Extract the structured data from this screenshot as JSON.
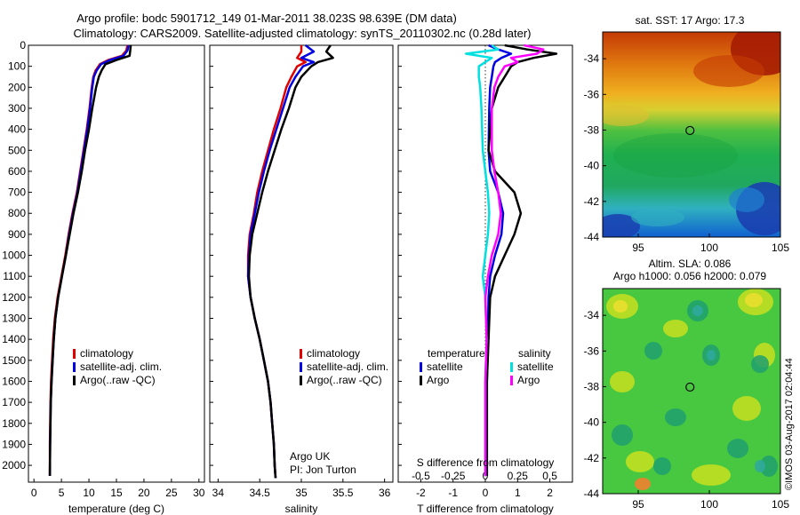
{
  "header": {
    "line1": "Argo profile: bodc 5901712_149 01-Mar-2011 38.023S 98.639E (DM data)",
    "line2": "Climatology: CARS2009. Satellite-adjusted climatology: synTS_20110302.nc (0.28d later)"
  },
  "credits": {
    "org": "Argo UK",
    "pi": "PI: Jon Turton",
    "stamp": "©IMOS 03-Aug-2017 02:04:44"
  },
  "colors": {
    "climatology": "#e00000",
    "satellite": "#0000e0",
    "argo": "#000000",
    "sal_satellite": "#00e0e0",
    "sal_argo": "#ff00ff"
  },
  "chart_data": [
    {
      "type": "line",
      "name": "temperature",
      "xlabel": "temperature (deg C)",
      "ylabel": "",
      "xlim": [
        -1,
        31
      ],
      "ylim": [
        2080,
        0
      ],
      "y_reversed": true,
      "xticks": [
        0,
        5,
        10,
        15,
        20,
        25,
        30
      ],
      "yticks": [
        0,
        100,
        200,
        300,
        400,
        500,
        600,
        700,
        800,
        900,
        1000,
        1100,
        1200,
        1300,
        1400,
        1500,
        1600,
        1700,
        1800,
        1900,
        2000
      ],
      "legend": [
        "climatology",
        "satellite-adj. clim.",
        "Argo(..raw -QC)"
      ],
      "legend_position": "bottom-center",
      "series": [
        {
          "name": "climatology",
          "color": "#e00000",
          "x": [
            17.0,
            16.8,
            16.0,
            13.5,
            12.0,
            11.2,
            10.8,
            10.5,
            10.1,
            9.6,
            9.0,
            8.4,
            7.8,
            7.0,
            6.3,
            5.7,
            5.0,
            4.3,
            3.8,
            3.5,
            3.3,
            3.1,
            3.0,
            2.9,
            2.9
          ],
          "y": [
            0,
            25,
            50,
            70,
            90,
            120,
            150,
            200,
            300,
            400,
            500,
            600,
            700,
            800,
            900,
            1000,
            1100,
            1200,
            1300,
            1400,
            1500,
            1600,
            1700,
            1900,
            2050
          ]
        },
        {
          "name": "satellite-adj. clim.",
          "color": "#0000e0",
          "x": [
            17.2,
            17.0,
            16.3,
            13.8,
            12.2,
            11.4,
            10.9,
            10.6,
            10.2,
            9.7,
            9.1,
            8.5,
            7.9,
            7.1,
            6.4,
            5.8,
            5.1,
            4.4,
            3.9,
            3.6,
            3.4,
            3.2,
            3.05,
            2.95,
            2.9
          ],
          "y": [
            0,
            25,
            50,
            70,
            90,
            120,
            150,
            200,
            300,
            400,
            500,
            600,
            700,
            800,
            900,
            1000,
            1100,
            1200,
            1300,
            1400,
            1500,
            1600,
            1700,
            1900,
            2050
          ]
        },
        {
          "name": "Argo(..raw -QC)",
          "color": "#000000",
          "x": [
            17.6,
            17.5,
            17.4,
            15.0,
            13.0,
            12.3,
            11.8,
            11.3,
            10.6,
            10.0,
            9.3,
            8.7,
            8.0,
            7.2,
            6.5,
            5.8,
            5.1,
            4.4,
            3.9,
            3.6,
            3.4,
            3.2,
            3.05,
            2.95,
            2.9
          ],
          "y": [
            0,
            25,
            50,
            70,
            90,
            120,
            150,
            200,
            300,
            400,
            500,
            600,
            700,
            800,
            900,
            1000,
            1100,
            1200,
            1300,
            1400,
            1500,
            1600,
            1700,
            1900,
            2050
          ]
        }
      ]
    },
    {
      "type": "line",
      "name": "salinity",
      "xlabel": "salinity",
      "ylabel": "",
      "xlim": [
        33.9,
        36.1
      ],
      "ylim": [
        2080,
        0
      ],
      "y_reversed": true,
      "xticks": [
        34,
        34.5,
        35,
        35.5,
        36
      ],
      "xticklabels": [
        "34",
        "34.5",
        "35",
        "35.5",
        "36"
      ],
      "legend": [
        "climatology",
        "satellite-adj. clim.",
        "Argo(..raw -QC)"
      ],
      "legend_position": "bottom-right",
      "series": [
        {
          "name": "climatology",
          "color": "#e00000",
          "x": [
            35.0,
            35.0,
            34.95,
            35.05,
            34.95,
            34.88,
            34.82,
            34.75,
            34.67,
            34.6,
            34.53,
            34.47,
            34.43,
            34.38,
            34.36,
            34.36,
            34.39,
            34.44,
            34.5,
            34.55,
            34.6,
            34.63,
            34.65,
            34.67,
            34.68,
            34.69
          ],
          "y": [
            0,
            30,
            60,
            80,
            100,
            150,
            200,
            300,
            400,
            500,
            600,
            700,
            800,
            900,
            1000,
            1100,
            1200,
            1300,
            1400,
            1500,
            1600,
            1700,
            1800,
            1900,
            2000,
            2060
          ]
        },
        {
          "name": "satellite-adj. clim.",
          "color": "#0000e0",
          "x": [
            35.05,
            35.15,
            35.0,
            35.15,
            35.02,
            34.93,
            34.86,
            34.78,
            34.7,
            34.62,
            34.55,
            34.49,
            34.44,
            34.39,
            34.37,
            34.36,
            34.39,
            34.44,
            34.5,
            34.55,
            34.6,
            34.63,
            34.65,
            34.67,
            34.68,
            34.69
          ],
          "y": [
            0,
            30,
            60,
            80,
            100,
            150,
            200,
            300,
            400,
            500,
            600,
            700,
            800,
            900,
            1000,
            1100,
            1200,
            1300,
            1400,
            1500,
            1600,
            1700,
            1800,
            1900,
            2000,
            2060
          ]
        },
        {
          "name": "Argo(..raw -QC)",
          "color": "#000000",
          "x": [
            35.35,
            35.3,
            35.38,
            35.2,
            35.12,
            35.0,
            34.93,
            34.85,
            34.76,
            34.68,
            34.6,
            34.53,
            34.47,
            34.41,
            34.38,
            34.37,
            34.39,
            34.44,
            34.5,
            34.55,
            34.6,
            34.63,
            34.65,
            34.67,
            34.68,
            34.69
          ],
          "y": [
            0,
            30,
            60,
            80,
            100,
            150,
            200,
            300,
            400,
            500,
            600,
            700,
            800,
            900,
            1000,
            1100,
            1200,
            1300,
            1400,
            1500,
            1600,
            1700,
            1800,
            1900,
            2000,
            2060
          ]
        }
      ]
    },
    {
      "type": "line",
      "name": "difference",
      "xlabel": "T difference from climatology",
      "top_xlabel": "S difference from climatology",
      "xlim": [
        -2.7,
        2.7
      ],
      "ylim": [
        2080,
        0
      ],
      "y_reversed": true,
      "bottom_xticks": [
        -2,
        -1,
        0,
        1,
        2
      ],
      "top_xticks": [
        -0.5,
        -0.25,
        0,
        0.25,
        0.5
      ],
      "top_xticklabels": [
        "-0.5",
        "-0.25",
        "0",
        "0.25",
        "0.5"
      ],
      "legend_titles": [
        "temperature",
        "salinity"
      ],
      "legend": [
        "satellite",
        "Argo",
        "satellite",
        "Argo"
      ],
      "legend_position": "bottom",
      "series": [
        {
          "name": "satellite",
          "group": "temperature",
          "color": "#0000e0",
          "x": [
            0.1,
            0.4,
            0.8,
            0.5,
            0.3,
            0.25,
            0.2,
            0.15,
            0.12,
            0.1,
            0.15,
            0.4,
            0.55,
            0.5,
            0.3,
            0.15,
            0.1,
            0.08,
            0.05,
            0.05,
            0.05
          ],
          "y": [
            0,
            20,
            40,
            60,
            80,
            100,
            150,
            200,
            300,
            500,
            600,
            700,
            800,
            900,
            1000,
            1100,
            1200,
            1400,
            1600,
            1800,
            2050
          ]
        },
        {
          "name": "Argo",
          "group": "temperature",
          "color": "#000000",
          "x": [
            0.6,
            1.3,
            2.2,
            1.5,
            1.0,
            0.8,
            0.6,
            0.4,
            0.2,
            0.1,
            0.3,
            0.9,
            1.1,
            0.9,
            0.6,
            0.3,
            0.15,
            0.1,
            0.05,
            0.05,
            0.05
          ],
          "y": [
            0,
            20,
            40,
            60,
            80,
            100,
            150,
            200,
            300,
            500,
            600,
            700,
            800,
            900,
            1000,
            1100,
            1200,
            1400,
            1600,
            1800,
            2050
          ]
        },
        {
          "name": "satellite",
          "group": "salinity",
          "color": "#00e0e0",
          "x": [
            0.05,
            0.1,
            -0.15,
            0.05,
            0.0,
            -0.05,
            -0.05,
            -0.04,
            -0.03,
            -0.02,
            0.0,
            0.02,
            0.03,
            0.02,
            0.0,
            -0.02,
            0.0,
            0.01,
            0.0,
            0.0,
            0.0
          ],
          "y": [
            0,
            20,
            40,
            60,
            80,
            100,
            150,
            200,
            300,
            500,
            600,
            700,
            800,
            900,
            1000,
            1100,
            1200,
            1400,
            1600,
            1800,
            2050
          ]
        },
        {
          "name": "Argo",
          "group": "salinity",
          "color": "#ff00ff",
          "x": [
            0.3,
            0.45,
            0.4,
            0.2,
            0.25,
            0.15,
            0.1,
            0.07,
            0.05,
            0.05,
            0.07,
            0.1,
            0.12,
            0.1,
            0.05,
            0.02,
            0.0,
            0.01,
            0.0,
            0.0,
            0.0
          ],
          "y": [
            0,
            20,
            40,
            60,
            80,
            100,
            150,
            200,
            300,
            500,
            600,
            700,
            800,
            900,
            1000,
            1100,
            1200,
            1400,
            1600,
            1800,
            2050
          ]
        }
      ]
    },
    {
      "type": "heatmap",
      "name": "sst-map",
      "title": "sat. SST: 17 Argo: 17.3",
      "xlim": [
        92.5,
        105
      ],
      "ylim": [
        -44,
        -32.5
      ],
      "xticks": [
        95,
        100,
        105
      ],
      "yticks": [
        -44,
        -42,
        -40,
        -38,
        -36,
        -34
      ],
      "marker": {
        "lon": 98.639,
        "lat": -38.023
      }
    },
    {
      "type": "heatmap",
      "name": "sla-map",
      "title_line1": "Altim. SLA: 0.086",
      "title_line2": "Argo h1000: 0.056 h2000: 0.079",
      "xlim": [
        92.5,
        105
      ],
      "ylim": [
        -44,
        -32.5
      ],
      "xticks": [
        95,
        100,
        105
      ],
      "yticks": [
        -44,
        -42,
        -40,
        -38,
        -36,
        -34
      ],
      "marker": {
        "lon": 98.639,
        "lat": -38.023
      }
    }
  ]
}
